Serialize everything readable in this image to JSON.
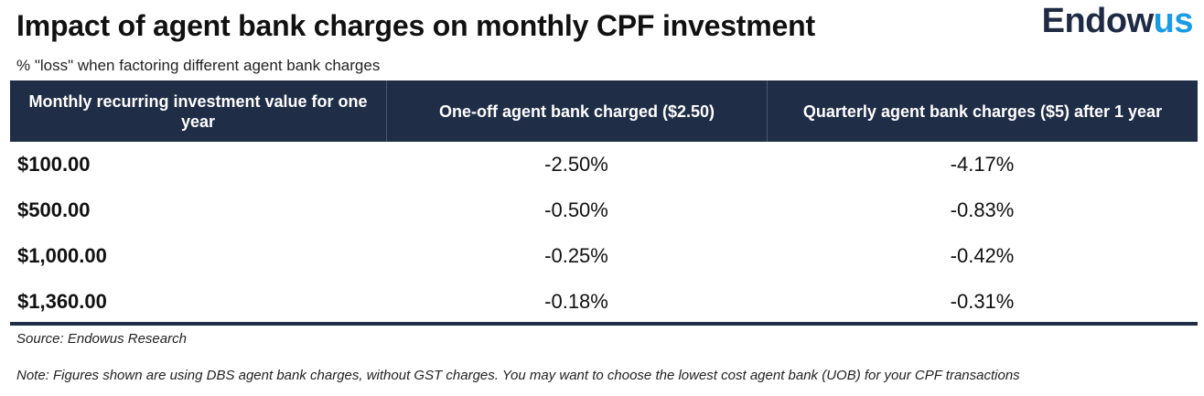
{
  "title": "Impact of agent bank charges on monthly CPF investment",
  "subtitle": "% \"loss\" when factoring different agent bank charges",
  "logo": {
    "main": "Endow",
    "accent": "us",
    "colors": {
      "main": "#1f2a44",
      "accent": "#1a9be6"
    }
  },
  "colors": {
    "header_bg": "#1f2d47",
    "header_text": "#ffffff"
  },
  "chart_data": {
    "type": "table",
    "columns": [
      "Monthly recurring investment value for one year",
      "One-off agent bank charged ($2.50)",
      "Quarterly agent bank charges ($5) after 1 year"
    ],
    "rows": [
      [
        "$100.00",
        "-2.50%",
        "-4.17%"
      ],
      [
        "$500.00",
        "-0.50%",
        "-0.83%"
      ],
      [
        "$1,000.00",
        "-0.25%",
        "-0.42%"
      ],
      [
        "$1,360.00",
        "-0.18%",
        "-0.31%"
      ]
    ]
  },
  "source": "Source: Endowus Research",
  "note": "Note: Figures shown are using DBS agent bank charges, without GST charges. You may want to choose the lowest cost agent bank (UOB) for your CPF transactions"
}
